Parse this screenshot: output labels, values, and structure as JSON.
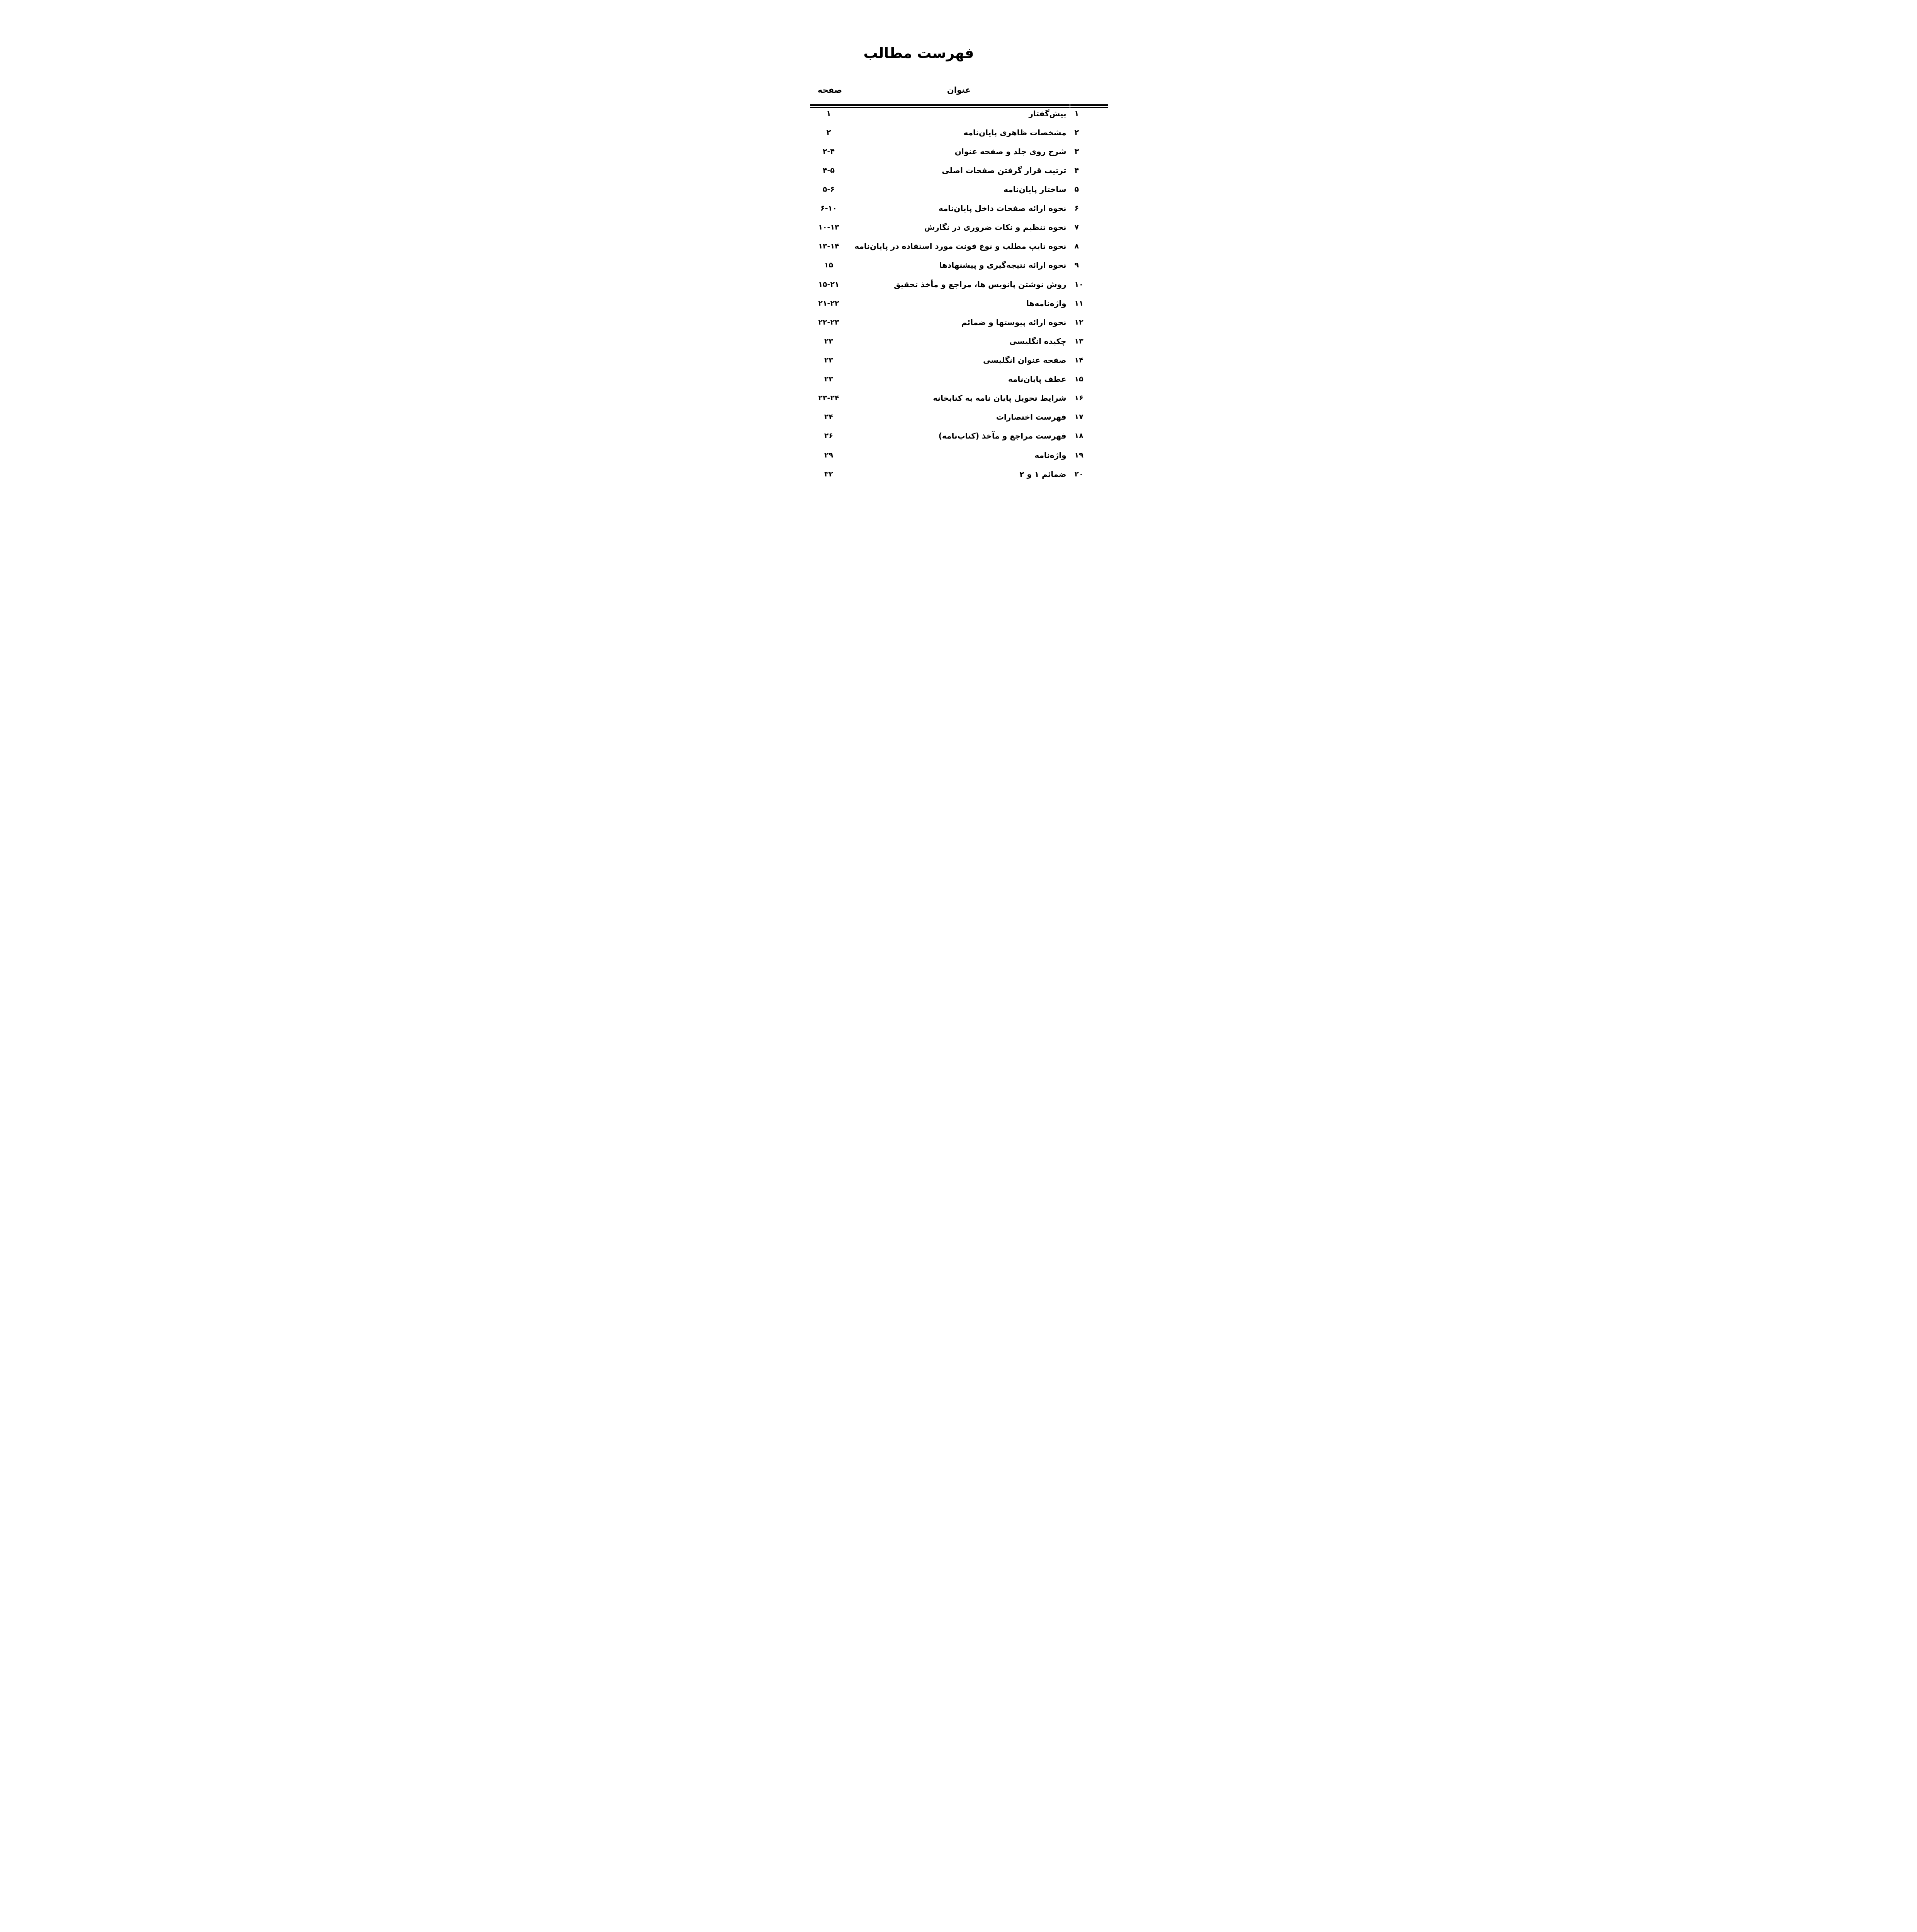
{
  "page": {
    "title": "فهرست مطالب",
    "columns": {
      "page_header": "صفحه",
      "title_header": "عنوان"
    },
    "colors": {
      "text": "#000000",
      "background": "#ffffff",
      "rule": "#000000"
    },
    "entries": [
      {
        "no": "۱",
        "title": "پیش‌گفتار",
        "pages": "۱"
      },
      {
        "no": "۲",
        "title": "مشخصات ظاهری پایان‌نامه",
        "pages": "۲"
      },
      {
        "no": "۳",
        "title": "شرح روی جلد و صفحه عنوان",
        "pages": "۲-۴"
      },
      {
        "no": "۴",
        "title": "ترتیب قرار گرفتن صفحات اصلی",
        "pages": "۴-۵"
      },
      {
        "no": "۵",
        "title": "ساختار پایان‌نامه",
        "pages": "۵-۶"
      },
      {
        "no": "۶",
        "title": "نحوه ارائه صفحات داخل پایان‌نامه",
        "pages": "۶-۱۰"
      },
      {
        "no": "۷",
        "title": "نحوه تنظیم و نکات ضروری در نگارش",
        "pages": "۱۰-۱۳"
      },
      {
        "no": "۸",
        "title": "نحوه تایپ مطلب و نوع فونت مورد استفاده در پایان‌نامه",
        "pages": "۱۳-۱۴"
      },
      {
        "no": "۹",
        "title": "نحوه ارائه نتیجه‌گیری و پیشنهادها",
        "pages": "۱۵"
      },
      {
        "no": "۱۰",
        "title": "روش نوشتن پانویس ها، مراجع و مأخذ تحقیق",
        "pages": "۱۵-۲۱"
      },
      {
        "no": "۱۱",
        "title": "واژه‌نامه‌ها",
        "pages": "۲۱-۲۲"
      },
      {
        "no": "۱۲",
        "title": "نحوه ارائه پیوستها و ضمائم",
        "pages": "۲۲-۲۳"
      },
      {
        "no": "۱۳",
        "title": "چکیده انگلیسی",
        "pages": "۲۳"
      },
      {
        "no": "۱۴",
        "title": "صفحه عنوان انگلیسی",
        "pages": "۲۳"
      },
      {
        "no": "۱۵",
        "title": "عطف پایان‌نامه",
        "pages": "۲۳"
      },
      {
        "no": "۱۶",
        "title": "شرایط تحویل پایان نامه به کتابخانه",
        "pages": "۲۳-۲۴"
      },
      {
        "no": "۱۷",
        "title": "فهرست اختصارات",
        "pages": "۲۴"
      },
      {
        "no": "۱۸",
        "title": "فهرست مراجع و مآخذ (کتاب‌نامه)",
        "pages": "۲۶"
      },
      {
        "no": "۱۹",
        "title": "واژه‌نامه",
        "pages": "۲۹"
      },
      {
        "no": "۲۰",
        "title": "ضمائم ۱ و ۲",
        "pages": "۳۲"
      }
    ]
  }
}
